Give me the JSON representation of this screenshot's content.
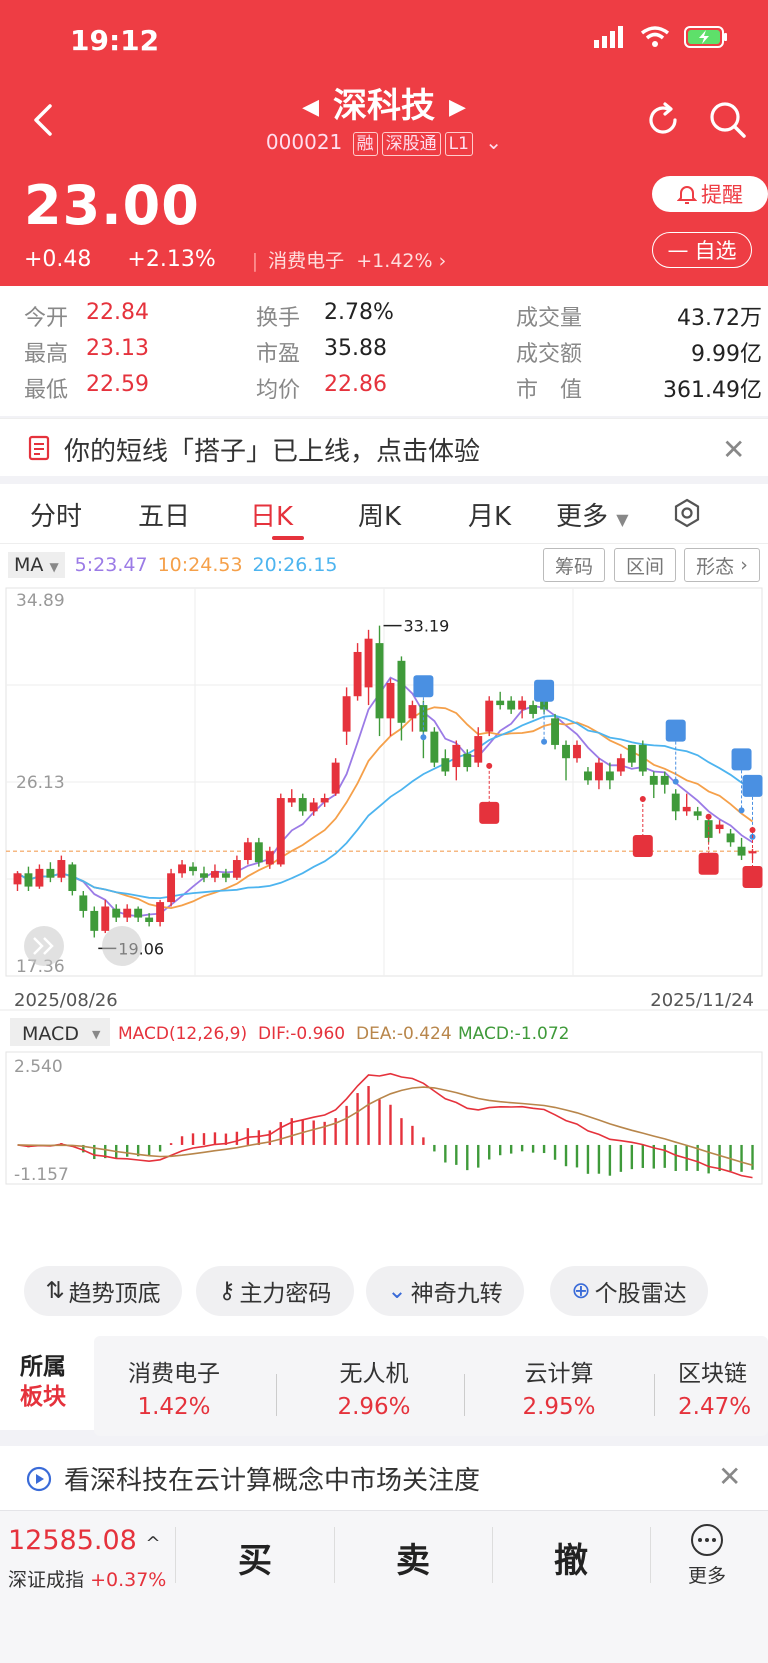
{
  "status": {
    "time": "19:12"
  },
  "header": {
    "title": "深科技",
    "code": "000021",
    "tags": [
      "融",
      "深股通",
      "L1"
    ],
    "price": "23.00",
    "change": "+0.48",
    "change_pct": "+2.13%",
    "sector_name": "消费电子",
    "sector_change": "+1.42%",
    "alert_label": "提醒",
    "favorite_label": "自选"
  },
  "stats": [
    {
      "label": "今开",
      "value": "22.84",
      "color": "#e5323c"
    },
    {
      "label": "换手",
      "value": "2.78%",
      "color": "#222222"
    },
    {
      "label": "成交量",
      "value": "43.72万",
      "color": "#222222"
    },
    {
      "label": "最高",
      "value": "23.13",
      "color": "#e5323c"
    },
    {
      "label": "市盈",
      "value": "35.88",
      "color": "#222222"
    },
    {
      "label": "成交额",
      "value": "9.99亿",
      "color": "#222222"
    },
    {
      "label": "最低",
      "value": "22.59",
      "color": "#e5323c"
    },
    {
      "label": "均价",
      "value": "22.86",
      "color": "#e5323c"
    },
    {
      "label": "市　值",
      "value": "361.49亿",
      "color": "#222222"
    }
  ],
  "promo": {
    "text": "你的短线「搭子」已上线，点击体验"
  },
  "tabs": [
    "分时",
    "五日",
    "日K",
    "周K",
    "月K",
    "更多"
  ],
  "active_tab": "日K",
  "ma_bar": {
    "selector": "MA",
    "ma5": "5:23.47",
    "ma10": "10:24.53",
    "ma20": "20:26.15",
    "buttons": [
      "筹码",
      "区间",
      "形态"
    ]
  },
  "chart_data": {
    "type": "candlestick",
    "y_axis_labels": [
      "34.89",
      "26.13",
      "17.36"
    ],
    "ylim": [
      17.36,
      34.89
    ],
    "x_start": "2025/08/26",
    "x_end": "2025/11/24",
    "high_label": "33.19",
    "low_label": "19.06",
    "candles": [
      [
        21.5,
        22.0,
        21.2,
        22.1
      ],
      [
        22.0,
        21.4,
        21.2,
        22.3
      ],
      [
        21.4,
        22.2,
        21.3,
        22.4
      ],
      [
        22.2,
        21.8,
        21.6,
        22.5
      ],
      [
        21.8,
        22.6,
        21.6,
        22.8
      ],
      [
        22.4,
        21.2,
        21.0,
        22.5
      ],
      [
        21.0,
        20.3,
        20.0,
        21.2
      ],
      [
        20.3,
        19.4,
        19.1,
        20.5
      ],
      [
        19.4,
        20.5,
        19.3,
        20.8
      ],
      [
        20.4,
        20.0,
        19.8,
        20.6
      ],
      [
        20.0,
        20.4,
        19.8,
        20.6
      ],
      [
        20.4,
        20.0,
        19.8,
        20.5
      ],
      [
        20.0,
        19.8,
        19.6,
        20.2
      ],
      [
        19.8,
        20.7,
        19.6,
        20.8
      ],
      [
        20.7,
        22.0,
        20.5,
        22.2
      ],
      [
        22.0,
        22.4,
        21.8,
        22.6
      ],
      [
        22.3,
        22.1,
        21.9,
        22.5
      ],
      [
        22.0,
        21.8,
        21.6,
        22.3
      ],
      [
        21.8,
        22.1,
        21.6,
        22.4
      ],
      [
        22.0,
        21.8,
        21.6,
        22.2
      ],
      [
        21.8,
        22.6,
        21.7,
        22.8
      ],
      [
        22.6,
        23.4,
        22.4,
        23.6
      ],
      [
        23.4,
        22.5,
        22.3,
        23.6
      ],
      [
        22.4,
        23.0,
        22.2,
        23.2
      ],
      [
        22.4,
        25.4,
        22.3,
        25.6
      ],
      [
        25.2,
        25.4,
        25.0,
        25.8
      ],
      [
        25.4,
        24.8,
        24.6,
        25.6
      ],
      [
        24.8,
        25.2,
        24.6,
        25.4
      ],
      [
        25.2,
        25.4,
        25.0,
        25.6
      ],
      [
        25.6,
        27.0,
        25.5,
        27.2
      ],
      [
        28.4,
        30.0,
        27.8,
        30.4
      ],
      [
        30.0,
        32.0,
        29.8,
        32.4
      ],
      [
        30.4,
        32.6,
        29.6,
        33.0
      ],
      [
        32.4,
        29.0,
        28.2,
        33.19
      ],
      [
        29.0,
        30.6,
        28.2,
        30.8
      ],
      [
        31.6,
        28.8,
        28.0,
        31.8
      ],
      [
        29.0,
        29.6,
        28.4,
        29.8
      ],
      [
        29.6,
        28.4,
        27.2,
        29.8
      ],
      [
        28.4,
        27.0,
        26.8,
        28.6
      ],
      [
        27.2,
        26.6,
        26.4,
        27.6
      ],
      [
        26.8,
        27.8,
        26.2,
        28.0
      ],
      [
        27.4,
        26.8,
        26.6,
        27.6
      ],
      [
        27.0,
        28.2,
        26.8,
        28.6
      ],
      [
        28.4,
        29.8,
        28.2,
        30.0
      ],
      [
        29.8,
        29.6,
        29.4,
        30.2
      ],
      [
        29.8,
        29.4,
        29.2,
        30.0
      ],
      [
        29.4,
        29.8,
        29.0,
        30.0
      ],
      [
        29.6,
        29.2,
        29.0,
        29.8
      ],
      [
        30.2,
        29.4,
        29.2,
        30.4
      ],
      [
        29.0,
        27.8,
        27.6,
        29.2
      ],
      [
        27.8,
        27.2,
        26.2,
        28.0
      ],
      [
        27.2,
        27.8,
        27.0,
        28.0
      ],
      [
        26.6,
        26.2,
        26.0,
        26.8
      ],
      [
        26.2,
        27.0,
        25.8,
        27.2
      ],
      [
        26.6,
        26.2,
        25.8,
        27.0
      ],
      [
        26.6,
        27.2,
        26.4,
        27.4
      ],
      [
        27.8,
        27.0,
        26.8,
        27.8
      ],
      [
        27.8,
        26.6,
        26.4,
        28.0
      ],
      [
        26.4,
        26.0,
        25.4,
        26.6
      ],
      [
        26.4,
        26.0,
        25.6,
        26.6
      ],
      [
        25.6,
        24.8,
        24.4,
        25.8
      ],
      [
        24.8,
        25.0,
        24.6,
        25.6
      ],
      [
        24.8,
        24.6,
        24.4,
        25.0
      ],
      [
        24.4,
        23.6,
        23.4,
        24.6
      ],
      [
        24.0,
        24.2,
        23.8,
        24.4
      ],
      [
        23.8,
        23.4,
        23.2,
        24.0
      ],
      [
        23.2,
        22.8,
        22.6,
        23.6
      ],
      [
        22.9,
        23.0,
        22.6,
        23.1
      ]
    ],
    "ma_lines": [
      {
        "name": "MA5",
        "color": "#9b7be6"
      },
      {
        "name": "MA10",
        "color": "#f5a04a"
      },
      {
        "name": "MA20",
        "color": "#4db4ef"
      }
    ],
    "signals": {
      "sell": [
        [
          37,
          29.5
        ],
        [
          48,
          29.3
        ],
        [
          60,
          27.5
        ],
        [
          66,
          26.2
        ],
        [
          67,
          25.0
        ]
      ],
      "buy": [
        [
          43,
          25.5
        ],
        [
          57,
          24.0
        ],
        [
          63,
          23.2
        ],
        [
          67,
          22.6
        ]
      ]
    },
    "macd": {
      "label": "MACD",
      "params": "MACD(12,26,9)",
      "dif": "DIF:-0.960",
      "dea": "DEA:-0.424",
      "macd": "MACD:-1.072",
      "top_label": "2.540",
      "bottom_label": "-1.157"
    }
  },
  "tools": [
    "趋势顶底",
    "主力密码",
    "神奇九转",
    "个股雷达"
  ],
  "sectors": {
    "label_line1": "所属",
    "label_line2": "板块",
    "items": [
      {
        "name": "消费电子",
        "pct": "1.42%"
      },
      {
        "name": "无人机",
        "pct": "2.96%"
      },
      {
        "name": "云计算",
        "pct": "2.95%"
      },
      {
        "name": "区块链",
        "pct": "2.47%"
      }
    ]
  },
  "promo2": {
    "text": "看深科技在云计算概念中市场关注度"
  },
  "bottom": {
    "index_value": "12585.08",
    "index_name": "深证成指",
    "index_change": "+0.37%",
    "buy": "买",
    "sell": "卖",
    "cancel": "撤",
    "more": "更多"
  }
}
